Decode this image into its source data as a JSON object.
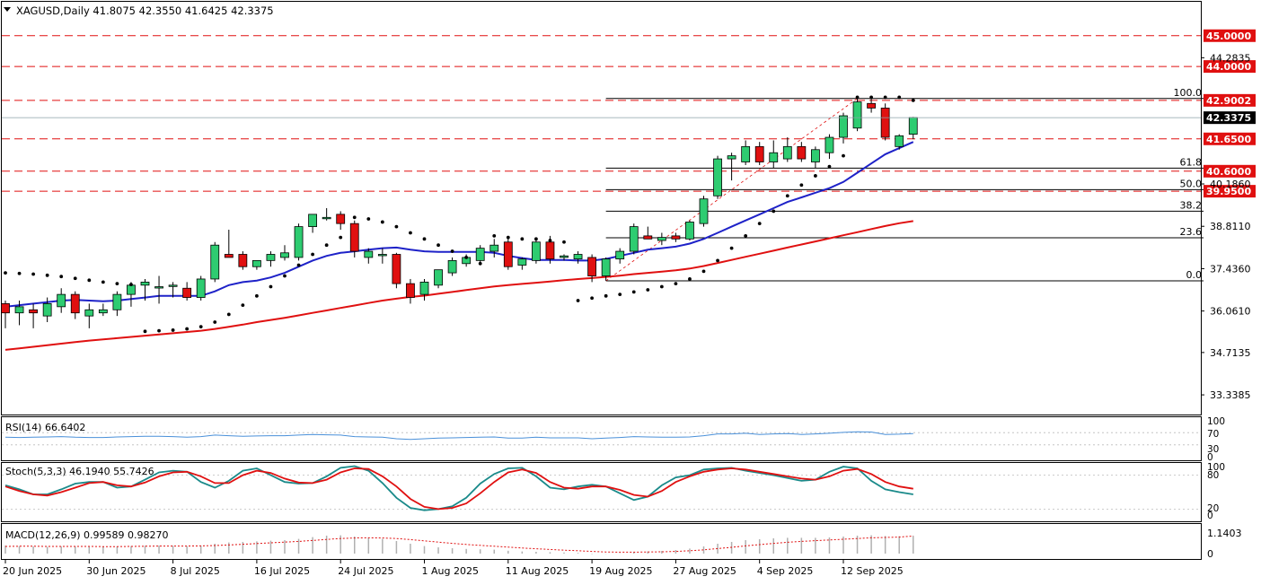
{
  "colors": {
    "bull": "#2ecc71",
    "bear": "#e01010",
    "ema_fast": "#1e22c8",
    "ema_slow": "#e01010",
    "level_line": "#e01010",
    "level_box": "#e01010",
    "price_box": "#000000",
    "grid": "#000000",
    "rsi": "#4a90d9",
    "stoch_k": "#1a8a8a",
    "stoch_d": "#e01010",
    "macd_hist": "#b0b0b0",
    "macd_signal": "#e01010",
    "sar": "#000000"
  },
  "chart_data": {
    "type": "candlestick",
    "symbol_header": "XAGUSD,Daily  41.8075 42.3550 41.6425 42.3375",
    "current_price": 42.3375,
    "current_price_label": "42.3375",
    "ylim": [
      32.7,
      46.1
    ],
    "y_ticks": [
      "44.2835",
      "40.1860",
      "38.8110",
      "37.4360",
      "36.0610",
      "34.7135",
      "33.3385"
    ],
    "x_ticks": [
      {
        "label": "20 Jun 2025",
        "index": 0
      },
      {
        "label": "30 Jun 2025",
        "index": 6
      },
      {
        "label": "8 Jul 2025",
        "index": 12
      },
      {
        "label": "16 Jul 2025",
        "index": 18
      },
      {
        "label": "24 Jul 2025",
        "index": 24
      },
      {
        "label": "1 Aug 2025",
        "index": 30
      },
      {
        "label": "11 Aug 2025",
        "index": 36
      },
      {
        "label": "19 Aug 2025",
        "index": 42
      },
      {
        "label": "27 Aug 2025",
        "index": 48
      },
      {
        "label": "4 Sep 2025",
        "index": 54
      },
      {
        "label": "12 Sep 2025",
        "index": 60
      }
    ],
    "levels": [
      {
        "value": 45.0,
        "label": "45.0000"
      },
      {
        "value": 44.0,
        "label": "44.0000"
      },
      {
        "value": 42.9,
        "label": "42.9002"
      },
      {
        "value": 41.65,
        "label": "41.6500"
      },
      {
        "value": 40.6,
        "label": "40.6000"
      },
      {
        "value": 39.95,
        "label": "39.9500"
      }
    ],
    "fibonacci": {
      "start_index": 43,
      "low": 37.04,
      "high": 42.96,
      "levels": [
        {
          "ratio": 1.0,
          "label": "100.0"
        },
        {
          "ratio": 0.618,
          "label": "61.8"
        },
        {
          "ratio": 0.5,
          "label": "50.0"
        },
        {
          "ratio": 0.382,
          "label": "38.2"
        },
        {
          "ratio": 0.236,
          "label": "23.6"
        },
        {
          "ratio": 0.0,
          "label": "0.0"
        }
      ]
    },
    "candles": [
      {
        "o": 36.3,
        "h": 36.4,
        "l": 35.5,
        "c": 36.0
      },
      {
        "o": 36.0,
        "h": 36.4,
        "l": 35.6,
        "c": 36.2
      },
      {
        "o": 36.1,
        "h": 36.3,
        "l": 35.5,
        "c": 36.0
      },
      {
        "o": 35.9,
        "h": 36.5,
        "l": 35.7,
        "c": 36.3
      },
      {
        "o": 36.2,
        "h": 36.8,
        "l": 36.0,
        "c": 36.6
      },
      {
        "o": 36.6,
        "h": 36.7,
        "l": 35.8,
        "c": 36.0
      },
      {
        "o": 35.9,
        "h": 36.3,
        "l": 35.5,
        "c": 36.1
      },
      {
        "o": 36.0,
        "h": 36.3,
        "l": 35.9,
        "c": 36.1
      },
      {
        "o": 36.1,
        "h": 36.7,
        "l": 35.9,
        "c": 36.6
      },
      {
        "o": 36.6,
        "h": 37.0,
        "l": 36.2,
        "c": 36.9
      },
      {
        "o": 36.9,
        "h": 37.1,
        "l": 36.4,
        "c": 37.0
      },
      {
        "o": 36.85,
        "h": 37.2,
        "l": 36.3,
        "c": 36.85
      },
      {
        "o": 36.9,
        "h": 37.0,
        "l": 36.5,
        "c": 36.9
      },
      {
        "o": 36.8,
        "h": 37.0,
        "l": 36.4,
        "c": 36.5
      },
      {
        "o": 36.5,
        "h": 37.2,
        "l": 36.4,
        "c": 37.1
      },
      {
        "o": 37.1,
        "h": 38.3,
        "l": 37.0,
        "c": 38.2
      },
      {
        "o": 37.9,
        "h": 38.7,
        "l": 37.8,
        "c": 37.8
      },
      {
        "o": 37.9,
        "h": 38.0,
        "l": 37.4,
        "c": 37.5
      },
      {
        "o": 37.5,
        "h": 37.7,
        "l": 37.4,
        "c": 37.7
      },
      {
        "o": 37.7,
        "h": 38.0,
        "l": 37.5,
        "c": 37.9
      },
      {
        "o": 37.8,
        "h": 38.2,
        "l": 37.7,
        "c": 37.95
      },
      {
        "o": 37.8,
        "h": 38.9,
        "l": 37.7,
        "c": 38.8
      },
      {
        "o": 38.8,
        "h": 39.2,
        "l": 38.6,
        "c": 39.2
      },
      {
        "o": 39.1,
        "h": 39.4,
        "l": 39.0,
        "c": 39.1
      },
      {
        "o": 39.2,
        "h": 39.3,
        "l": 38.7,
        "c": 38.9
      },
      {
        "o": 38.9,
        "h": 39.0,
        "l": 37.8,
        "c": 38.0
      },
      {
        "o": 37.8,
        "h": 38.1,
        "l": 37.6,
        "c": 38.0
      },
      {
        "o": 37.9,
        "h": 38.1,
        "l": 37.6,
        "c": 37.9
      },
      {
        "o": 37.9,
        "h": 37.95,
        "l": 36.8,
        "c": 36.95
      },
      {
        "o": 36.95,
        "h": 37.1,
        "l": 36.3,
        "c": 36.5
      },
      {
        "o": 36.6,
        "h": 37.1,
        "l": 36.4,
        "c": 37.0
      },
      {
        "o": 36.9,
        "h": 37.4,
        "l": 36.8,
        "c": 37.4
      },
      {
        "o": 37.3,
        "h": 37.8,
        "l": 37.2,
        "c": 37.7
      },
      {
        "o": 37.6,
        "h": 37.9,
        "l": 37.5,
        "c": 37.8
      },
      {
        "o": 37.7,
        "h": 38.2,
        "l": 37.6,
        "c": 38.1
      },
      {
        "o": 38.0,
        "h": 38.4,
        "l": 37.8,
        "c": 38.2
      },
      {
        "o": 38.3,
        "h": 38.5,
        "l": 37.4,
        "c": 37.5
      },
      {
        "o": 37.55,
        "h": 37.8,
        "l": 37.4,
        "c": 37.75
      },
      {
        "o": 37.7,
        "h": 38.4,
        "l": 37.6,
        "c": 38.3
      },
      {
        "o": 38.3,
        "h": 38.5,
        "l": 37.6,
        "c": 37.75
      },
      {
        "o": 37.8,
        "h": 37.9,
        "l": 37.7,
        "c": 37.85
      },
      {
        "o": 37.75,
        "h": 38.0,
        "l": 37.6,
        "c": 37.9
      },
      {
        "o": 37.8,
        "h": 37.9,
        "l": 37.0,
        "c": 37.2
      },
      {
        "o": 37.2,
        "h": 37.8,
        "l": 37.04,
        "c": 37.75
      },
      {
        "o": 37.75,
        "h": 38.1,
        "l": 37.6,
        "c": 38.0
      },
      {
        "o": 38.0,
        "h": 38.9,
        "l": 37.9,
        "c": 38.8
      },
      {
        "o": 38.5,
        "h": 38.8,
        "l": 38.4,
        "c": 38.4
      },
      {
        "o": 38.35,
        "h": 38.6,
        "l": 38.2,
        "c": 38.45
      },
      {
        "o": 38.5,
        "h": 38.6,
        "l": 38.3,
        "c": 38.4
      },
      {
        "o": 38.4,
        "h": 39.0,
        "l": 38.35,
        "c": 38.95
      },
      {
        "o": 38.9,
        "h": 39.8,
        "l": 38.8,
        "c": 39.7
      },
      {
        "o": 39.8,
        "h": 41.1,
        "l": 39.7,
        "c": 41.0
      },
      {
        "o": 41.0,
        "h": 41.2,
        "l": 40.3,
        "c": 41.1
      },
      {
        "o": 40.9,
        "h": 41.6,
        "l": 40.8,
        "c": 41.4
      },
      {
        "o": 41.4,
        "h": 41.55,
        "l": 40.8,
        "c": 40.9
      },
      {
        "o": 40.9,
        "h": 41.6,
        "l": 40.7,
        "c": 41.2
      },
      {
        "o": 41.0,
        "h": 41.7,
        "l": 40.9,
        "c": 41.4
      },
      {
        "o": 41.4,
        "h": 41.55,
        "l": 40.9,
        "c": 41.0
      },
      {
        "o": 40.9,
        "h": 41.4,
        "l": 40.7,
        "c": 41.3
      },
      {
        "o": 41.2,
        "h": 41.8,
        "l": 41.0,
        "c": 41.7
      },
      {
        "o": 41.7,
        "h": 42.5,
        "l": 41.5,
        "c": 42.4
      },
      {
        "o": 42.0,
        "h": 43.0,
        "l": 41.9,
        "c": 42.85
      },
      {
        "o": 42.8,
        "h": 43.0,
        "l": 42.5,
        "c": 42.65
      },
      {
        "o": 42.65,
        "h": 42.8,
        "l": 41.6,
        "c": 41.7
      },
      {
        "o": 41.4,
        "h": 41.8,
        "l": 41.3,
        "c": 41.75
      },
      {
        "o": 41.8,
        "h": 42.36,
        "l": 41.64,
        "c": 42.34
      }
    ],
    "ema_fast": [
      36.2,
      36.25,
      36.3,
      36.35,
      36.4,
      36.42,
      36.4,
      36.38,
      36.4,
      36.45,
      36.5,
      36.55,
      36.55,
      36.55,
      36.55,
      36.7,
      36.9,
      37.0,
      37.05,
      37.15,
      37.3,
      37.5,
      37.7,
      37.85,
      37.95,
      38.0,
      38.05,
      38.1,
      38.12,
      38.05,
      38.0,
      37.98,
      37.98,
      37.98,
      37.98,
      37.95,
      37.85,
      37.78,
      37.72,
      37.72,
      37.72,
      37.7,
      37.7,
      37.75,
      37.85,
      37.95,
      38.05,
      38.1,
      38.15,
      38.25,
      38.4,
      38.6,
      38.8,
      39.0,
      39.2,
      39.4,
      39.6,
      39.75,
      39.9,
      40.05,
      40.25,
      40.55,
      40.85,
      41.15,
      41.35,
      41.55
    ],
    "ema_slow": [
      34.8,
      34.85,
      34.9,
      34.95,
      35.0,
      35.05,
      35.1,
      35.14,
      35.18,
      35.22,
      35.26,
      35.3,
      35.34,
      35.38,
      35.42,
      35.48,
      35.55,
      35.62,
      35.7,
      35.77,
      35.84,
      35.92,
      36.0,
      36.08,
      36.16,
      36.24,
      36.32,
      36.4,
      36.46,
      36.52,
      36.56,
      36.62,
      36.68,
      36.74,
      36.8,
      36.86,
      36.9,
      36.94,
      36.98,
      37.02,
      37.06,
      37.1,
      37.13,
      37.17,
      37.21,
      37.26,
      37.3,
      37.34,
      37.38,
      37.44,
      37.52,
      37.62,
      37.72,
      37.82,
      37.92,
      38.02,
      38.12,
      38.22,
      38.32,
      38.42,
      38.52,
      38.62,
      38.72,
      38.82,
      38.91,
      38.98
    ],
    "sar": [
      37.3,
      37.28,
      37.26,
      37.22,
      37.18,
      37.12,
      37.06,
      37.0,
      36.95,
      36.92,
      35.4,
      35.42,
      35.44,
      35.48,
      35.55,
      35.7,
      35.95,
      36.25,
      36.55,
      36.85,
      37.2,
      37.55,
      37.9,
      38.2,
      38.45,
      39.1,
      39.05,
      38.95,
      38.8,
      38.6,
      38.4,
      38.2,
      38.0,
      37.8,
      37.6,
      38.5,
      38.45,
      38.4,
      38.4,
      38.35,
      38.3,
      36.4,
      36.48,
      36.55,
      36.6,
      36.68,
      36.75,
      36.85,
      36.95,
      37.1,
      37.35,
      37.7,
      38.1,
      38.5,
      38.9,
      39.3,
      39.8,
      40.15,
      40.45,
      40.75,
      41.1,
      43.0,
      43.0,
      43.0,
      43.0,
      42.9
    ],
    "rsi": {
      "label": "RSI(14) 66.6402",
      "levels": [
        "100",
        "70",
        "30",
        "0"
      ],
      "values": [
        55,
        54,
        55,
        56,
        57,
        55,
        54,
        54,
        56,
        57,
        58,
        58,
        57,
        55,
        57,
        62,
        60,
        58,
        59,
        60,
        60,
        62,
        64,
        63,
        62,
        57,
        56,
        55,
        50,
        48,
        50,
        52,
        53,
        54,
        55,
        56,
        52,
        52,
        55,
        53,
        53,
        53,
        50,
        52,
        54,
        57,
        56,
        55,
        55,
        56,
        60,
        66,
        66,
        68,
        64,
        66,
        67,
        64,
        66,
        68,
        71,
        73,
        72,
        64,
        65,
        67
      ]
    },
    "stoch": {
      "label": "Stoch(5,3,3) 46.1940 55.7426",
      "levels": [
        "100",
        "80",
        "20",
        "0"
      ],
      "k": [
        62,
        55,
        46,
        46,
        55,
        65,
        68,
        68,
        58,
        60,
        72,
        85,
        88,
        86,
        68,
        58,
        70,
        88,
        92,
        80,
        68,
        65,
        66,
        78,
        93,
        96,
        88,
        66,
        40,
        22,
        18,
        20,
        25,
        40,
        65,
        82,
        92,
        93,
        78,
        58,
        55,
        60,
        63,
        60,
        48,
        36,
        42,
        62,
        76,
        80,
        90,
        92,
        93,
        88,
        84,
        80,
        75,
        70,
        72,
        86,
        95,
        92,
        70,
        55,
        50,
        46
      ],
      "d": [
        60,
        52,
        46,
        44,
        50,
        58,
        66,
        68,
        62,
        60,
        67,
        78,
        85,
        86,
        78,
        66,
        66,
        80,
        88,
        84,
        74,
        67,
        66,
        72,
        85,
        92,
        91,
        78,
        60,
        38,
        24,
        20,
        22,
        30,
        48,
        68,
        85,
        90,
        84,
        68,
        58,
        56,
        60,
        60,
        54,
        45,
        42,
        52,
        68,
        78,
        86,
        90,
        92,
        90,
        86,
        82,
        78,
        74,
        72,
        78,
        88,
        91,
        82,
        68,
        60,
        56
      ]
    },
    "macd": {
      "label": "MACD(12,26,9) 0.99589 0.98270",
      "ticks": [
        "1.1403",
        "0"
      ],
      "ylim": [
        -0.25,
        1.6
      ],
      "hist": [
        0.45,
        0.42,
        0.4,
        0.38,
        0.4,
        0.4,
        0.38,
        0.38,
        0.4,
        0.42,
        0.44,
        0.45,
        0.44,
        0.42,
        0.44,
        0.55,
        0.62,
        0.65,
        0.68,
        0.72,
        0.75,
        0.82,
        0.92,
        1.0,
        1.02,
        0.95,
        0.88,
        0.82,
        0.7,
        0.55,
        0.42,
        0.35,
        0.3,
        0.26,
        0.24,
        0.22,
        0.16,
        0.12,
        0.1,
        0.08,
        0.06,
        0.04,
        -0.02,
        -0.01,
        0.02,
        0.08,
        0.12,
        0.15,
        0.2,
        0.28,
        0.4,
        0.55,
        0.65,
        0.75,
        0.8,
        0.85,
        0.88,
        0.88,
        0.88,
        0.9,
        0.95,
        1.0,
        1.02,
        0.98,
        0.97,
        0.99
      ],
      "signal": [
        0.4,
        0.41,
        0.41,
        0.4,
        0.4,
        0.4,
        0.4,
        0.39,
        0.39,
        0.4,
        0.41,
        0.42,
        0.42,
        0.42,
        0.43,
        0.45,
        0.48,
        0.52,
        0.56,
        0.6,
        0.64,
        0.68,
        0.73,
        0.79,
        0.84,
        0.87,
        0.88,
        0.87,
        0.84,
        0.78,
        0.71,
        0.64,
        0.57,
        0.51,
        0.46,
        0.41,
        0.36,
        0.31,
        0.27,
        0.23,
        0.19,
        0.16,
        0.12,
        0.09,
        0.08,
        0.08,
        0.09,
        0.1,
        0.12,
        0.16,
        0.21,
        0.28,
        0.35,
        0.43,
        0.5,
        0.57,
        0.63,
        0.68,
        0.72,
        0.76,
        0.8,
        0.84,
        0.88,
        0.9,
        0.92,
        0.98
      ]
    }
  }
}
